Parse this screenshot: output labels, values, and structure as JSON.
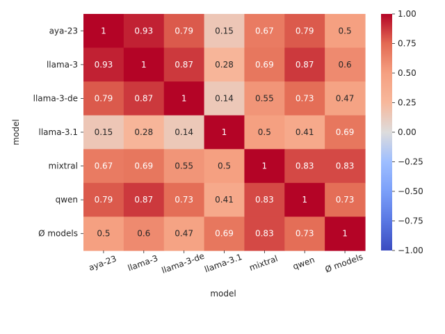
{
  "chart_data": {
    "type": "heatmap",
    "title": "",
    "xlabel": "model",
    "ylabel": "model",
    "x_categories": [
      "aya-23",
      "llama-3",
      "llama-3-de",
      "llama-3.1",
      "mixtral",
      "qwen",
      "Ø models"
    ],
    "y_categories": [
      "aya-23",
      "llama-3",
      "llama-3-de",
      "llama-3.1",
      "mixtral",
      "qwen",
      "Ø models"
    ],
    "values": [
      [
        1,
        0.93,
        0.79,
        0.15,
        0.67,
        0.79,
        0.5
      ],
      [
        0.93,
        1,
        0.87,
        0.28,
        0.69,
        0.87,
        0.6
      ],
      [
        0.79,
        0.87,
        1,
        0.14,
        0.55,
        0.73,
        0.47
      ],
      [
        0.15,
        0.28,
        0.14,
        1,
        0.5,
        0.41,
        0.69
      ],
      [
        0.67,
        0.69,
        0.55,
        0.5,
        1,
        0.83,
        0.83
      ],
      [
        0.79,
        0.87,
        0.73,
        0.41,
        0.83,
        1,
        0.73
      ],
      [
        0.5,
        0.6,
        0.47,
        0.69,
        0.83,
        0.73,
        1
      ]
    ],
    "colormap": "coolwarm",
    "vmin": -1,
    "vmax": 1,
    "colorbar_ticks": [
      "1.00",
      "0.75",
      "0.50",
      "0.25",
      "0.00",
      "−0.25",
      "−0.50",
      "−0.75",
      "−1.00"
    ],
    "x_tick_rotation_deg": -20
  }
}
